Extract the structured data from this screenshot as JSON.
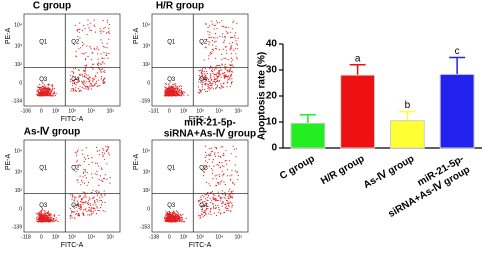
{
  "panels": [
    {
      "title": [
        "C group"
      ],
      "y_low": "-134",
      "x_low": "-106"
    },
    {
      "title": [
        "H/R group"
      ],
      "y_low": "-159",
      "x_low": "-131"
    },
    {
      "title": [
        "As-Ⅳ group"
      ],
      "y_low": "-139",
      "x_low": "-118"
    },
    {
      "title": [
        "miR-21-5p-",
        "siRNA+As-Ⅳ group"
      ],
      "y_low": "-153",
      "x_low": "-138"
    }
  ],
  "flow_axes": {
    "x_label": "FITC-A",
    "y_label": "PE-A",
    "y_ticks": [
      "10⁴",
      "10³",
      "10²",
      "0"
    ],
    "x_ticks": [
      "0",
      "10²",
      "10³",
      "10⁴",
      "10⁵"
    ]
  },
  "quadrants": [
    "Q1",
    "Q2",
    "Q3",
    "Q4"
  ],
  "chart_data": {
    "type": "bar",
    "y_label": "Apoptosis rate (%)",
    "categories": [
      [
        "C group"
      ],
      [
        "H/R group"
      ],
      [
        "As-Ⅳ group"
      ],
      [
        "miR-21-5p-",
        "siRNA+As-Ⅳ group"
      ]
    ],
    "values": [
      9.5,
      28,
      10.5,
      28.3
    ],
    "errors": [
      3.3,
      4,
      3.5,
      6.5
    ],
    "sig_letters": [
      null,
      "a",
      "b",
      "c"
    ],
    "colors": [
      "#22ee22",
      "#ee1111",
      "#ffff33",
      "#2222ee"
    ],
    "ylim": [
      0,
      40
    ],
    "yticks": [
      0,
      10,
      20,
      30,
      40
    ]
  }
}
